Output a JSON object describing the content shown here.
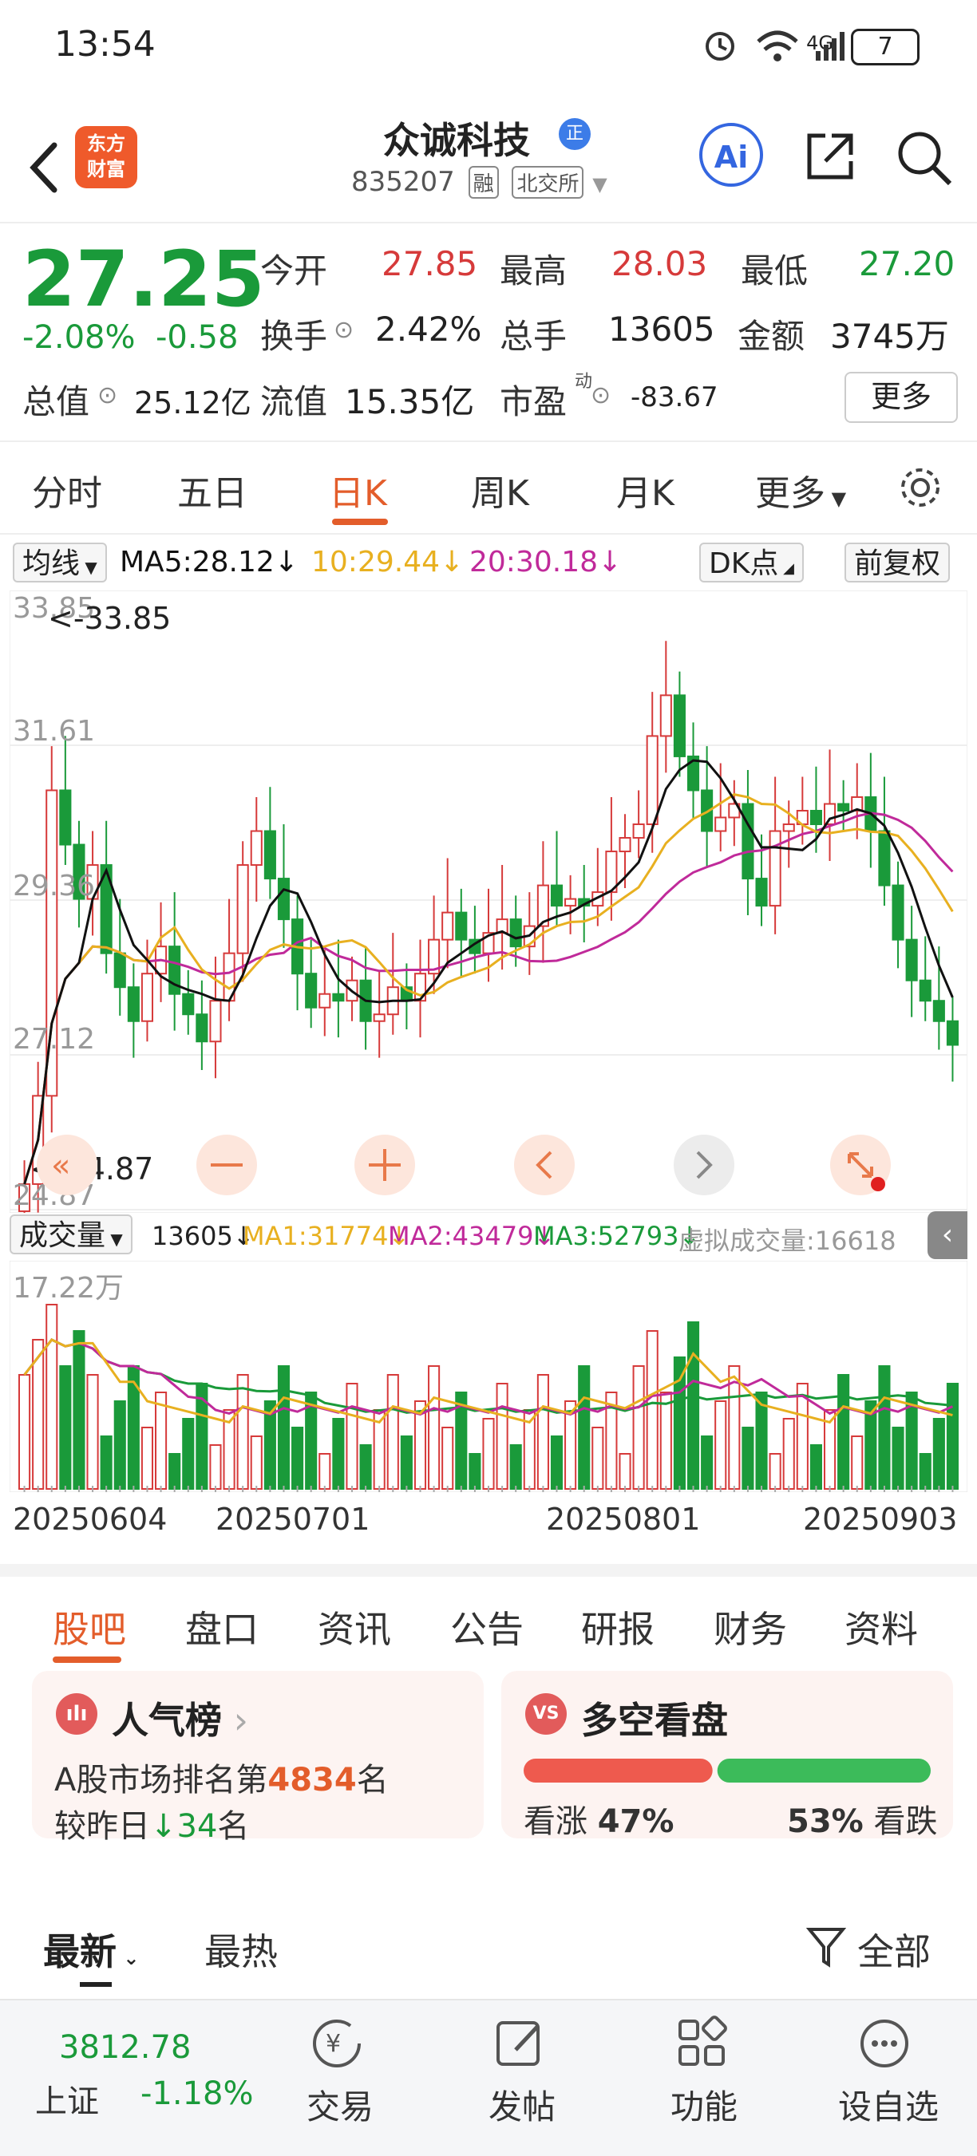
{
  "status_bar": {
    "time": "13:54",
    "network": "4G",
    "battery": "7"
  },
  "header": {
    "back_icon": "chevron-left-icon",
    "logo_line1": "东方",
    "logo_line2": "财富",
    "stock_name": "众诚科技",
    "badge": "正",
    "code": "835207",
    "tags": [
      "融",
      "北交所"
    ],
    "ai_label": "Ai"
  },
  "quote": {
    "price": "27.25",
    "change_pct": "-2.08%",
    "change_abs": "-0.58",
    "open_label": "今开",
    "open": "27.85",
    "high_label": "最高",
    "high": "28.03",
    "low_label": "最低",
    "low": "27.20",
    "turnover_label": "换手",
    "turnover": "2.42%",
    "vol_label": "总手",
    "vol": "13605",
    "amount_label": "金额",
    "amount": "3745万",
    "cap_label": "总值",
    "cap": "25.12亿",
    "float_label": "流值",
    "float": "15.35亿",
    "pe_label": "市盈",
    "pe_sup": "动",
    "pe": "-83.67",
    "more": "更多"
  },
  "kline_tabs": [
    "分时",
    "五日",
    "日K",
    "周K",
    "月K",
    "更多"
  ],
  "ma_bar": {
    "selector": "均线",
    "ma5": "MA5:28.12↓",
    "ma10": "10:29.44↓",
    "ma20": "20:30.18↓",
    "dk": "DK点",
    "adjust": "前复权"
  },
  "price_axis": [
    "33.85",
    "31.61",
    "29.36",
    "27.12",
    "24.87"
  ],
  "max_label": "<-33.85",
  "min_label": "<-24.87",
  "volume_bar": {
    "selector": "成交量",
    "vol": "13605↓",
    "ma1": "MA1:31774↓",
    "ma2": "MA2:43479↓",
    "ma3": "MA3:52793↓",
    "virtual": "虚拟成交量:16618"
  },
  "volume_axis": "17.22万",
  "dates": [
    "20250604",
    "20250701",
    "20250801",
    "20250903"
  ],
  "info_tabs": [
    "股吧",
    "盘口",
    "资讯",
    "公告",
    "研报",
    "财务",
    "资料"
  ],
  "popularity": {
    "title": "人气榜",
    "line1_pre": "A股市场排名第",
    "rank": "4834",
    "line1_post": "名",
    "line2_pre": "较昨日",
    "delta": "34",
    "line2_post": "名"
  },
  "sentiment": {
    "title": "多空看盘",
    "bull_label": "看涨",
    "bull_pct": "47%",
    "bear_pct": "53%",
    "bear_label": "看跌",
    "bull_frac": 0.47
  },
  "feed": {
    "latest": "最新",
    "hot": "最热",
    "filter": "全部"
  },
  "bottom_nav": {
    "index_value": "3812.78",
    "index_name": "上证",
    "index_change": "-1.18%",
    "items": [
      "交易",
      "发帖",
      "功能",
      "设自选"
    ]
  },
  "colors": {
    "up": "#d63a3a",
    "down": "#1a9a3a",
    "accent": "#e35d2b",
    "ma5": "#111111",
    "ma10": "#e8b020",
    "ma20": "#c02a9a"
  }
}
